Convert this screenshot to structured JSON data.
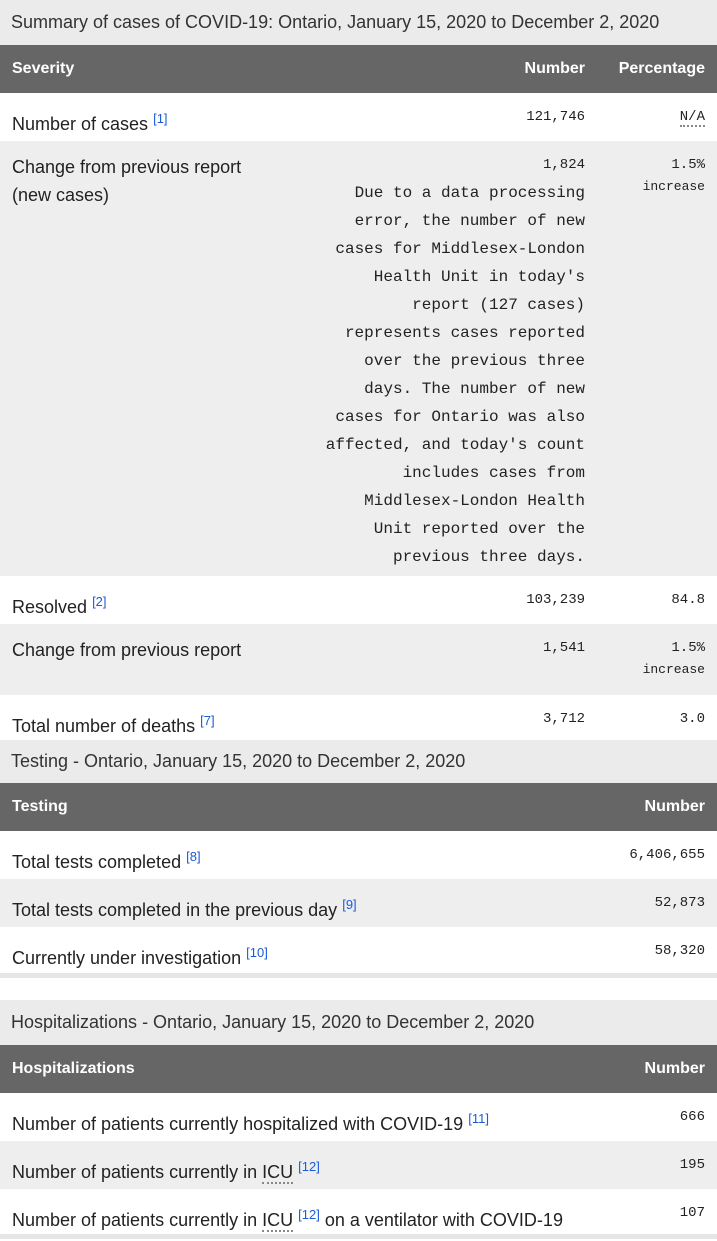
{
  "summary": {
    "caption": "Summary of cases of COVID-19: Ontario, January 15, 2020 to December 2, 2020",
    "headers": {
      "severity": "Severity",
      "number": "Number",
      "percentage": "Percentage"
    },
    "rows": [
      {
        "label": "Number of cases",
        "ref": "[1]",
        "number": "121,746",
        "percentage": "N/A"
      },
      {
        "label": "Change from previous report (new cases)",
        "number": "1,824",
        "note": "Due to a data processing\nerror, the number of new\ncases for Middlesex-London\nHealth Unit in today's\nreport (127 cases)\nrepresents cases reported\nover the previous three\ndays. The number of new\ncases for Ontario was also\naffected, and today's count\nincludes cases from\nMiddlesex-London Health\nUnit reported over the\nprevious three days.",
        "percentage": "1.5%",
        "percentage_note": "increase"
      },
      {
        "label": "Resolved",
        "ref": "[2]",
        "number": "103,239",
        "percentage": "84.8"
      },
      {
        "label": "Change from previous report",
        "number": "1,541",
        "percentage": "1.5%",
        "percentage_note": "increase"
      },
      {
        "label": "Total number of deaths",
        "ref": "[7]",
        "number": "3,712",
        "percentage": "3.0"
      }
    ]
  },
  "testing": {
    "caption": "Testing - Ontario, January 15, 2020 to December 2, 2020",
    "headers": {
      "testing": "Testing",
      "number": "Number"
    },
    "rows": [
      {
        "label": "Total tests completed",
        "ref": "[8]",
        "number": "6,406,655"
      },
      {
        "label": "Total tests completed in the previous day",
        "ref": "[9]",
        "number": "52,873"
      },
      {
        "label": "Currently under investigation",
        "ref": "[10]",
        "number": "58,320"
      }
    ]
  },
  "hospitalizations": {
    "caption": "Hospitalizations - Ontario, January 15, 2020 to December 2, 2020",
    "headers": {
      "hospitalizations": "Hospitalizations",
      "number": "Number"
    },
    "rows": [
      {
        "label": "Number of patients currently hospitalized with COVID-19",
        "ref": "[11]",
        "number": "666"
      },
      {
        "label": "Number of patients currently in",
        "abbr": "ICU",
        "ref": "[12]",
        "number": "195"
      },
      {
        "label": "Number of patients currently in",
        "abbr": "ICU",
        "ref": "[12]",
        "label_after": "on a ventilator with COVID-19",
        "number": "107"
      }
    ]
  }
}
